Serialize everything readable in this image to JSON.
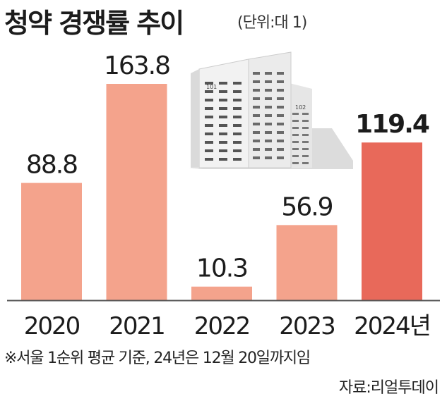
{
  "header": {
    "title": "청약 경쟁률 추이",
    "unit": "(단위:대 1)"
  },
  "chart_data": {
    "type": "bar",
    "categories": [
      "2020",
      "2021",
      "2022",
      "2023",
      "2024년"
    ],
    "values": [
      88.8,
      163.8,
      10.3,
      56.9,
      119.4
    ],
    "value_labels": [
      "88.8",
      "163.8",
      "10.3",
      "56.9",
      "119.4"
    ],
    "title": "청약 경쟁률 추이",
    "ylabel": "",
    "xlabel": "",
    "ylim": [
      0,
      163.8
    ],
    "highlight_index": 4,
    "colors": {
      "bar": "#F4A38C",
      "highlight": "#E8695A",
      "baseline": "#555555"
    },
    "grid": false,
    "legend": "none"
  },
  "building": {
    "labels": [
      "101",
      "102"
    ],
    "colors": {
      "facade": "#F2F2F2",
      "window": "#555555",
      "shadow": "#DCDCDC"
    }
  },
  "notes": {
    "footnote": "※서울 1순위 평균 기준, 24년은 12월 20일까지임",
    "source": "자료:리얼투데이"
  }
}
